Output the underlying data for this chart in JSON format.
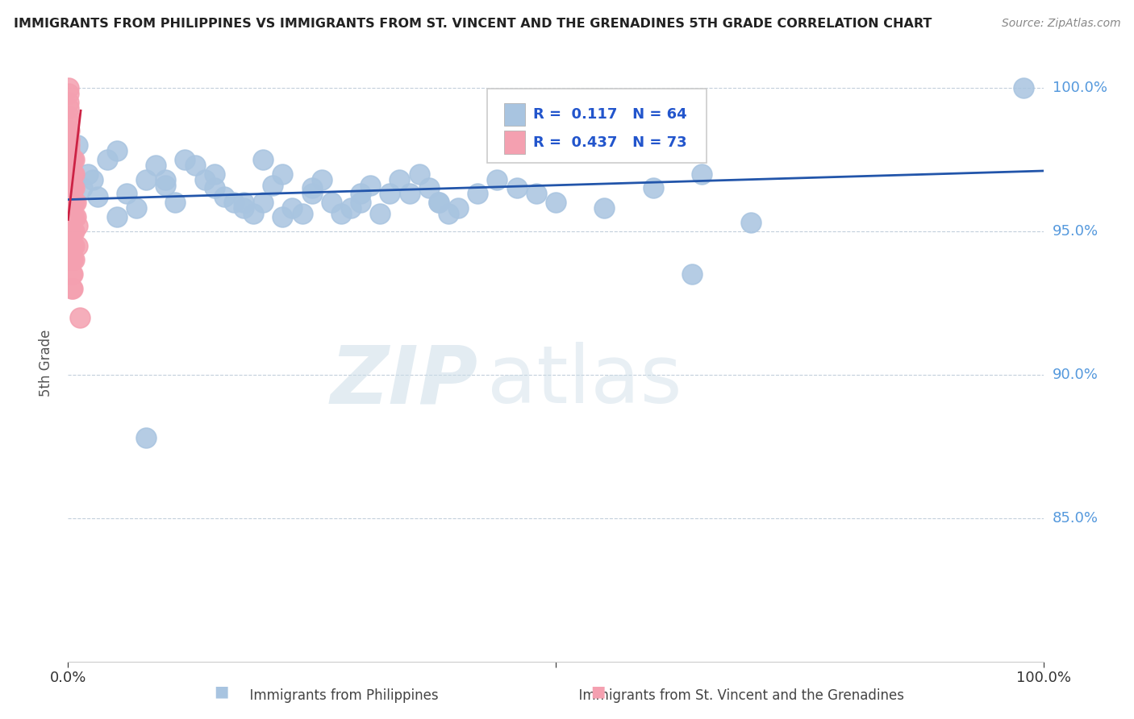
{
  "title": "IMMIGRANTS FROM PHILIPPINES VS IMMIGRANTS FROM ST. VINCENT AND THE GRENADINES 5TH GRADE CORRELATION CHART",
  "source": "Source: ZipAtlas.com",
  "ylabel": "5th Grade",
  "R_blue": 0.117,
  "N_blue": 64,
  "R_pink": 0.437,
  "N_pink": 73,
  "blue_color": "#a8c4e0",
  "pink_color": "#f4a0b0",
  "blue_line_color": "#2255aa",
  "pink_line_color": "#cc2244",
  "watermark_zip": "ZIP",
  "watermark_atlas": "atlas",
  "xlim": [
    0.0,
    1.0
  ],
  "ylim": [
    0.8,
    1.008
  ],
  "yticks": [
    0.85,
    0.9,
    0.95,
    1.0
  ],
  "ytick_labels": [
    "85.0%",
    "90.0%",
    "95.0%",
    "100.0%"
  ],
  "xtick_labels": [
    "0.0%",
    "100.0%"
  ],
  "blue_scatter_x": [
    0.005,
    0.01,
    0.015,
    0.02,
    0.025,
    0.03,
    0.04,
    0.05,
    0.06,
    0.07,
    0.08,
    0.09,
    0.1,
    0.11,
    0.12,
    0.13,
    0.14,
    0.15,
    0.16,
    0.17,
    0.18,
    0.19,
    0.2,
    0.21,
    0.22,
    0.23,
    0.24,
    0.25,
    0.26,
    0.27,
    0.28,
    0.29,
    0.3,
    0.31,
    0.32,
    0.33,
    0.34,
    0.35,
    0.36,
    0.37,
    0.38,
    0.39,
    0.4,
    0.42,
    0.44,
    0.46,
    0.48,
    0.5,
    0.55,
    0.6,
    0.65,
    0.7,
    0.98,
    0.64,
    0.38,
    0.22,
    0.3,
    0.18,
    0.25,
    0.15,
    0.2,
    0.1,
    0.08,
    0.05
  ],
  "blue_scatter_y": [
    0.975,
    0.98,
    0.965,
    0.97,
    0.968,
    0.962,
    0.975,
    0.978,
    0.963,
    0.958,
    0.968,
    0.973,
    0.966,
    0.96,
    0.975,
    0.973,
    0.968,
    0.965,
    0.962,
    0.96,
    0.958,
    0.956,
    0.96,
    0.966,
    0.97,
    0.958,
    0.956,
    0.963,
    0.968,
    0.96,
    0.956,
    0.958,
    0.963,
    0.966,
    0.956,
    0.963,
    0.968,
    0.963,
    0.97,
    0.965,
    0.96,
    0.956,
    0.958,
    0.963,
    0.968,
    0.965,
    0.963,
    0.96,
    0.958,
    0.965,
    0.97,
    0.953,
    1.0,
    0.935,
    0.96,
    0.955,
    0.96,
    0.96,
    0.965,
    0.97,
    0.975,
    0.968,
    0.878,
    0.955
  ],
  "pink_scatter_x": [
    0.0005,
    0.0005,
    0.0005,
    0.0005,
    0.0005,
    0.0005,
    0.0005,
    0.0005,
    0.0005,
    0.0005,
    0.001,
    0.001,
    0.001,
    0.001,
    0.001,
    0.001,
    0.001,
    0.001,
    0.001,
    0.001,
    0.0015,
    0.0015,
    0.0015,
    0.0015,
    0.0015,
    0.002,
    0.002,
    0.002,
    0.002,
    0.002,
    0.0025,
    0.0025,
    0.0025,
    0.003,
    0.003,
    0.003,
    0.003,
    0.003,
    0.003,
    0.003,
    0.004,
    0.004,
    0.004,
    0.004,
    0.004,
    0.004,
    0.004,
    0.004,
    0.004,
    0.004,
    0.005,
    0.005,
    0.005,
    0.005,
    0.005,
    0.005,
    0.005,
    0.005,
    0.005,
    0.005,
    0.006,
    0.006,
    0.006,
    0.006,
    0.006,
    0.006,
    0.006,
    0.006,
    0.008,
    0.008,
    0.01,
    0.01,
    0.012
  ],
  "pink_scatter_y": [
    0.975,
    0.978,
    0.982,
    0.985,
    0.988,
    0.99,
    0.993,
    0.995,
    0.998,
    1.0,
    0.97,
    0.965,
    0.96,
    0.958,
    0.955,
    0.952,
    0.95,
    0.948,
    0.945,
    0.94,
    0.975,
    0.978,
    0.98,
    0.982,
    0.985,
    0.96,
    0.955,
    0.95,
    0.945,
    0.94,
    0.975,
    0.97,
    0.965,
    0.975,
    0.97,
    0.965,
    0.96,
    0.955,
    0.95,
    0.945,
    0.975,
    0.97,
    0.965,
    0.96,
    0.955,
    0.95,
    0.945,
    0.94,
    0.935,
    0.93,
    0.975,
    0.97,
    0.965,
    0.96,
    0.955,
    0.95,
    0.945,
    0.94,
    0.935,
    0.93,
    0.975,
    0.97,
    0.965,
    0.96,
    0.955,
    0.95,
    0.945,
    0.94,
    0.96,
    0.955,
    0.952,
    0.945,
    0.92
  ],
  "blue_trend_x": [
    0.0,
    1.0
  ],
  "blue_trend_y": [
    0.961,
    0.971
  ],
  "legend_R_blue": "R =  0.117",
  "legend_N_blue": "N = 64",
  "legend_R_pink": "R =  0.437",
  "legend_N_pink": "N = 73",
  "bottom_label_blue": "Immigrants from Philippines",
  "bottom_label_pink": "Immigrants from St. Vincent and the Grenadines"
}
